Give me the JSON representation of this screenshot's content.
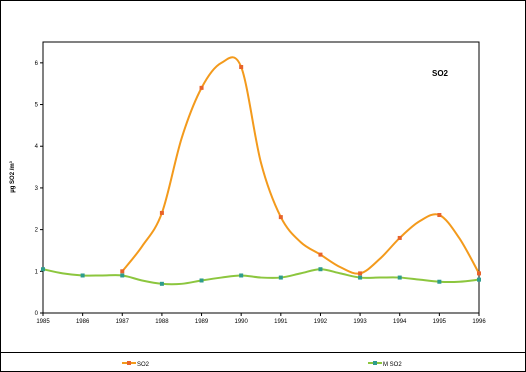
{
  "chart_data": {
    "type": "line",
    "title": "SO2",
    "xlabel": "",
    "ylabel": "µg SO2 /m³",
    "xlim": [
      1985,
      1996
    ],
    "ylim": [
      0,
      6.5
    ],
    "x_ticks": [
      "1985",
      "1986",
      "1987",
      "1988",
      "1989",
      "1990",
      "1991",
      "1992",
      "1993",
      "1994",
      "1995",
      "1996"
    ],
    "y_ticks": [
      "0",
      "1",
      "2",
      "3",
      "4",
      "5",
      "6"
    ],
    "grid": false,
    "legend_position": "bottom",
    "series": [
      {
        "name": "SO2",
        "color": "#f39a1c",
        "marker_color": "#e8632a",
        "x": [
          1987,
          1987.5,
          1988,
          1988.5,
          1989,
          1989.5,
          1990,
          1990.5,
          1991,
          1991.5,
          1992,
          1992.5,
          1993,
          1993.5,
          1994,
          1994.5,
          1995,
          1995.5,
          1996
        ],
        "y": [
          1.0,
          1.6,
          2.4,
          4.2,
          5.4,
          6.0,
          5.9,
          3.6,
          2.3,
          1.7,
          1.4,
          1.1,
          0.95,
          1.3,
          1.8,
          2.2,
          2.35,
          1.8,
          0.95
        ],
        "markers": [
          {
            "x": 1987,
            "y": 1.0
          },
          {
            "x": 1988,
            "y": 2.4
          },
          {
            "x": 1989,
            "y": 5.4
          },
          {
            "x": 1990,
            "y": 5.9
          },
          {
            "x": 1991,
            "y": 2.3
          },
          {
            "x": 1992,
            "y": 1.4
          },
          {
            "x": 1993,
            "y": 0.95
          },
          {
            "x": 1994,
            "y": 1.8
          },
          {
            "x": 1995,
            "y": 2.35
          },
          {
            "x": 1996,
            "y": 0.95
          }
        ]
      },
      {
        "name": "M SO2",
        "color": "#8cc63e",
        "marker_color": "#2e9c8c",
        "x": [
          1985,
          1985.5,
          1986,
          1986.5,
          1987,
          1987.5,
          1988,
          1988.5,
          1989,
          1989.5,
          1990,
          1990.5,
          1991,
          1991.5,
          1992,
          1992.5,
          1993,
          1993.5,
          1994,
          1994.5,
          1995,
          1995.5,
          1996
        ],
        "y": [
          1.05,
          0.95,
          0.9,
          0.9,
          0.9,
          0.78,
          0.7,
          0.7,
          0.78,
          0.85,
          0.9,
          0.85,
          0.85,
          0.95,
          1.05,
          0.95,
          0.85,
          0.85,
          0.85,
          0.8,
          0.75,
          0.75,
          0.8
        ],
        "markers": [
          {
            "x": 1985,
            "y": 1.05
          },
          {
            "x": 1986,
            "y": 0.9
          },
          {
            "x": 1987,
            "y": 0.9
          },
          {
            "x": 1988,
            "y": 0.7
          },
          {
            "x": 1989,
            "y": 0.78
          },
          {
            "x": 1990,
            "y": 0.9
          },
          {
            "x": 1991,
            "y": 0.85
          },
          {
            "x": 1992,
            "y": 1.05
          },
          {
            "x": 1993,
            "y": 0.85
          },
          {
            "x": 1994,
            "y": 0.85
          },
          {
            "x": 1995,
            "y": 0.75
          },
          {
            "x": 1996,
            "y": 0.8
          }
        ]
      }
    ]
  }
}
